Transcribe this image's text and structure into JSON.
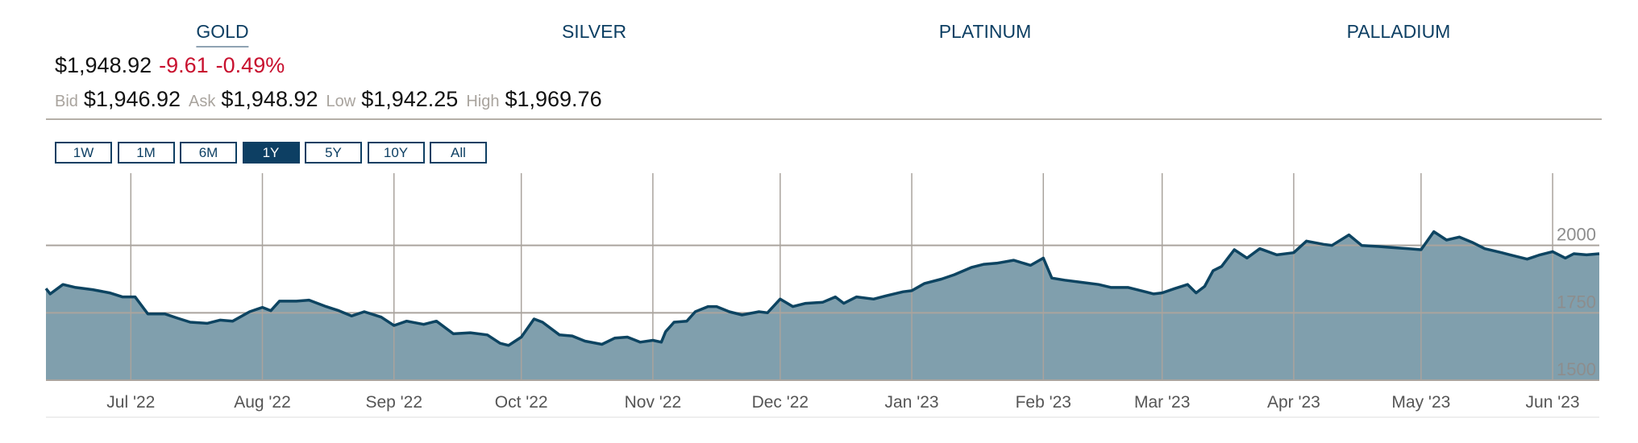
{
  "tabs": [
    "GOLD",
    "SILVER",
    "PLATINUM",
    "PALLADIUM"
  ],
  "active_tab": 0,
  "quote": {
    "price": "$1,948.92",
    "change": "-9.61",
    "change_percent": "-0.49%",
    "bid_label": "Bid",
    "bid": "$1,946.92",
    "ask_label": "Ask",
    "ask": "$1,948.92",
    "low_label": "Low",
    "low": "$1,942.25",
    "high_label": "High",
    "high": "$1,969.76"
  },
  "ranges": [
    "1W",
    "1M",
    "6M",
    "1Y",
    "5Y",
    "10Y",
    "All"
  ],
  "active_range": 3,
  "chart_data": {
    "type": "area",
    "x": [
      "2022-06-11",
      "2022-06-12",
      "2022-06-15",
      "2022-06-18",
      "2022-06-22",
      "2022-06-26",
      "2022-06-29",
      "2022-07-02",
      "2022-07-05",
      "2022-07-09",
      "2022-07-12",
      "2022-07-15",
      "2022-07-19",
      "2022-07-22",
      "2022-07-25",
      "2022-07-29",
      "2022-08-01",
      "2022-08-03",
      "2022-08-05",
      "2022-08-09",
      "2022-08-12",
      "2022-08-16",
      "2022-08-19",
      "2022-08-22",
      "2022-08-25",
      "2022-08-29",
      "2022-09-01",
      "2022-09-04",
      "2022-09-08",
      "2022-09-11",
      "2022-09-15",
      "2022-09-19",
      "2022-09-23",
      "2022-09-26",
      "2022-09-28",
      "2022-10-01",
      "2022-10-04",
      "2022-10-06",
      "2022-10-10",
      "2022-10-13",
      "2022-10-16",
      "2022-10-20",
      "2022-10-23",
      "2022-10-26",
      "2022-10-29",
      "2022-11-01",
      "2022-11-03",
      "2022-11-04",
      "2022-11-06",
      "2022-11-09",
      "2022-11-11",
      "2022-11-14",
      "2022-11-16",
      "2022-11-19",
      "2022-11-22",
      "2022-11-26",
      "2022-11-28",
      "2022-12-01",
      "2022-12-04",
      "2022-12-07",
      "2022-12-11",
      "2022-12-14",
      "2022-12-16",
      "2022-12-19",
      "2022-12-23",
      "2022-12-26",
      "2022-12-30",
      "2023-01-01",
      "2023-01-04",
      "2023-01-08",
      "2023-01-11",
      "2023-01-15",
      "2023-01-18",
      "2023-01-21",
      "2023-01-25",
      "2023-01-29",
      "2023-02-01",
      "2023-02-03",
      "2023-02-06",
      "2023-02-10",
      "2023-02-14",
      "2023-02-17",
      "2023-02-21",
      "2023-02-25",
      "2023-02-27",
      "2023-03-01",
      "2023-03-04",
      "2023-03-07",
      "2023-03-09",
      "2023-03-11",
      "2023-03-13",
      "2023-03-15",
      "2023-03-18",
      "2023-03-21",
      "2023-03-24",
      "2023-03-28",
      "2023-04-01",
      "2023-04-04",
      "2023-04-08",
      "2023-04-10",
      "2023-04-14",
      "2023-04-17",
      "2023-04-21",
      "2023-04-24",
      "2023-04-28",
      "2023-05-01",
      "2023-05-04",
      "2023-05-07",
      "2023-05-10",
      "2023-05-13",
      "2023-05-16",
      "2023-05-20",
      "2023-05-22",
      "2023-05-26",
      "2023-05-29",
      "2023-06-01",
      "2023-06-04",
      "2023-06-06",
      "2023-06-09",
      "2023-06-12"
    ],
    "series": [
      {
        "color": "#0d4461",
        "fill": "#809fad",
        "values": [
          1840,
          1820,
          1855,
          1844,
          1836,
          1824,
          1809,
          1809,
          1746,
          1746,
          1730,
          1715,
          1711,
          1723,
          1719,
          1754,
          1770,
          1758,
          1793,
          1793,
          1797,
          1773,
          1758,
          1738,
          1754,
          1734,
          1703,
          1719,
          1707,
          1719,
          1672,
          1676,
          1668,
          1637,
          1629,
          1660,
          1727,
          1715,
          1668,
          1664,
          1645,
          1633,
          1656,
          1660,
          1641,
          1648,
          1641,
          1680,
          1715,
          1719,
          1754,
          1773,
          1773,
          1754,
          1742,
          1754,
          1750,
          1801,
          1773,
          1785,
          1789,
          1809,
          1785,
          1809,
          1801,
          1813,
          1828,
          1832,
          1859,
          1875,
          1891,
          1918,
          1930,
          1934,
          1945,
          1926,
          1953,
          1879,
          1871,
          1863,
          1855,
          1844,
          1844,
          1828,
          1820,
          1824,
          1840,
          1855,
          1824,
          1848,
          1906,
          1922,
          1984,
          1953,
          1988,
          1965,
          1973,
          2016,
          2004,
          2000,
          2039,
          2000,
          1996,
          1992,
          1988,
          1984,
          2051,
          2020,
          2031,
          2012,
          1988,
          1973,
          1965,
          1949,
          1965,
          1977,
          1953,
          1969,
          1965,
          1969
        ]
      }
    ],
    "xlim": [
      "2022-06-11",
      "2023-06-12"
    ],
    "xticks": [
      {
        "value": "2022-07-01",
        "label": "Jul '22"
      },
      {
        "value": "2022-08-01",
        "label": "Aug '22"
      },
      {
        "value": "2022-09-01",
        "label": "Sep '22"
      },
      {
        "value": "2022-10-01",
        "label": "Oct '22"
      },
      {
        "value": "2022-11-01",
        "label": "Nov '22"
      },
      {
        "value": "2022-12-01",
        "label": "Dec '22"
      },
      {
        "value": "2023-01-01",
        "label": "Jan '23"
      },
      {
        "value": "2023-02-01",
        "label": "Feb '23"
      },
      {
        "value": "2023-03-01",
        "label": "Mar '23"
      },
      {
        "value": "2023-04-01",
        "label": "Apr '23"
      },
      {
        "value": "2023-05-01",
        "label": "May '23"
      },
      {
        "value": "2023-06-01",
        "label": "Jun '23"
      }
    ],
    "ylim": [
      1500,
      2250
    ],
    "yticks": [
      1500,
      1750,
      2000
    ],
    "grid": true
  }
}
